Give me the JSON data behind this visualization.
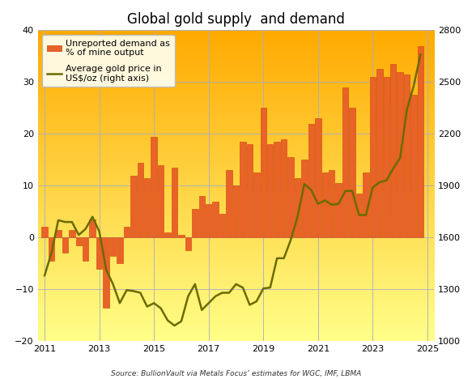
{
  "title": "Global gold supply  and demand",
  "source_text": "Source: BullionVault via Metals Focus’ estimates for WGC, IMF, LBMA",
  "bar_label": "Unreported demand as\n% of mine output",
  "line_label": "Average gold price in\nUS$/oz (right axis)",
  "bar_color": "#E8622A",
  "bar_edgecolor": "#CC4400",
  "line_color": "#6B6B00",
  "background_top": "#FFAA00",
  "background_bottom": "#FFFF88",
  "ylim_left": [
    -20,
    40
  ],
  "ylim_right": [
    1000,
    2800
  ],
  "yticks_left": [
    -20,
    -10,
    0,
    10,
    20,
    30,
    40
  ],
  "yticks_right": [
    1000,
    1300,
    1600,
    1900,
    2200,
    2500,
    2800
  ],
  "bar_x": [
    2011.0,
    2011.25,
    2011.5,
    2011.75,
    2012.0,
    2012.25,
    2012.5,
    2012.75,
    2013.0,
    2013.25,
    2013.5,
    2013.75,
    2014.0,
    2014.25,
    2014.5,
    2014.75,
    2015.0,
    2015.25,
    2015.5,
    2015.75,
    2016.0,
    2016.25,
    2016.5,
    2016.75,
    2017.0,
    2017.25,
    2017.5,
    2017.75,
    2018.0,
    2018.25,
    2018.5,
    2018.75,
    2019.0,
    2019.25,
    2019.5,
    2019.75,
    2020.0,
    2020.25,
    2020.5,
    2020.75,
    2021.0,
    2021.25,
    2021.5,
    2021.75,
    2022.0,
    2022.25,
    2022.5,
    2022.75,
    2023.0,
    2023.25,
    2023.5,
    2023.75,
    2024.0,
    2024.25,
    2024.5,
    2024.75
  ],
  "bar_values": [
    2.0,
    -4.5,
    1.5,
    -3.0,
    1.5,
    -1.5,
    -4.5,
    3.5,
    -6.0,
    -13.5,
    -3.5,
    -5.0,
    2.0,
    12.0,
    14.5,
    11.5,
    19.5,
    14.0,
    1.0,
    13.5,
    0.5,
    -2.5,
    5.5,
    8.0,
    6.5,
    7.0,
    4.5,
    13.0,
    10.0,
    18.5,
    18.0,
    12.5,
    25.0,
    18.0,
    18.5,
    19.0,
    15.5,
    11.5,
    15.0,
    22.0,
    23.0,
    12.5,
    13.0,
    10.5,
    29.0,
    25.0,
    8.5,
    12.5,
    31.0,
    32.5,
    31.0,
    33.5,
    32.0,
    31.5,
    27.5,
    37.0
  ],
  "line_x": [
    2011.0,
    2011.25,
    2011.5,
    2011.75,
    2012.0,
    2012.25,
    2012.5,
    2012.75,
    2013.0,
    2013.25,
    2013.5,
    2013.75,
    2014.0,
    2014.25,
    2014.5,
    2014.75,
    2015.0,
    2015.25,
    2015.5,
    2015.75,
    2016.0,
    2016.25,
    2016.5,
    2016.75,
    2017.0,
    2017.25,
    2017.5,
    2017.75,
    2018.0,
    2018.25,
    2018.5,
    2018.75,
    2019.0,
    2019.25,
    2019.5,
    2019.75,
    2020.0,
    2020.25,
    2020.5,
    2020.75,
    2021.0,
    2021.25,
    2021.5,
    2021.75,
    2022.0,
    2022.25,
    2022.5,
    2022.75,
    2023.0,
    2023.25,
    2023.5,
    2023.75,
    2024.0,
    2024.25,
    2024.5,
    2024.75
  ],
  "line_values": [
    1380,
    1510,
    1700,
    1690,
    1690,
    1615,
    1650,
    1720,
    1635,
    1415,
    1330,
    1220,
    1295,
    1290,
    1280,
    1200,
    1220,
    1190,
    1120,
    1090,
    1115,
    1260,
    1330,
    1180,
    1220,
    1260,
    1280,
    1280,
    1330,
    1310,
    1210,
    1230,
    1305,
    1310,
    1480,
    1480,
    1585,
    1720,
    1910,
    1875,
    1795,
    1815,
    1790,
    1795,
    1870,
    1870,
    1730,
    1730,
    1890,
    1920,
    1930,
    2000,
    2060,
    2340,
    2480,
    2660
  ],
  "bar_width": 0.22,
  "xlim": [
    2010.75,
    2025.25
  ],
  "xticks": [
    2011,
    2013,
    2015,
    2017,
    2019,
    2021,
    2023,
    2025
  ],
  "xtick_labels": [
    "2011",
    "2013",
    "2015",
    "2017",
    "2019",
    "2021",
    "2023",
    "2025"
  ],
  "grid_color": "#AAAACC",
  "legend_fontsize": 8.0,
  "title_fontsize": 12
}
